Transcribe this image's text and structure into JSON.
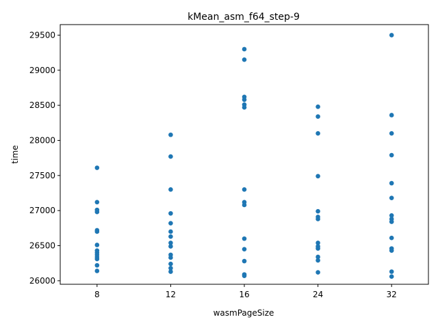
{
  "chart_data": {
    "type": "scatter",
    "title": "kMean_asm_f64_step-9",
    "xlabel": "wasmPageSize",
    "ylabel": "time",
    "categories": [
      "8",
      "12",
      "16",
      "24",
      "32"
    ],
    "ylim": [
      25950,
      29650
    ],
    "yticks": [
      26000,
      26500,
      27000,
      27500,
      28000,
      28500,
      29000,
      29500
    ],
    "grid": false,
    "point_color": "#1f77b4",
    "series": [
      {
        "category": "8",
        "values": [
          27610,
          27120,
          27010,
          26980,
          26720,
          26700,
          26510,
          26430,
          26400,
          26370,
          26340,
          26310,
          26220,
          26140
        ]
      },
      {
        "category": "12",
        "values": [
          28080,
          27770,
          27300,
          26960,
          26820,
          26700,
          26630,
          26540,
          26490,
          26370,
          26330,
          26240,
          26180,
          26130
        ]
      },
      {
        "category": "16",
        "values": [
          29300,
          29150,
          28620,
          28580,
          28510,
          28470,
          27300,
          27120,
          27080,
          26600,
          26450,
          26280,
          26090,
          26070
        ]
      },
      {
        "category": "24",
        "values": [
          28480,
          28340,
          28100,
          27490,
          26990,
          26910,
          26880,
          26540,
          26490,
          26460,
          26340,
          26290,
          26120
        ]
      },
      {
        "category": "32",
        "values": [
          29500,
          28360,
          28100,
          27790,
          27390,
          27180,
          26930,
          26880,
          26840,
          26610,
          26460,
          26430,
          26130,
          26060
        ]
      }
    ]
  }
}
